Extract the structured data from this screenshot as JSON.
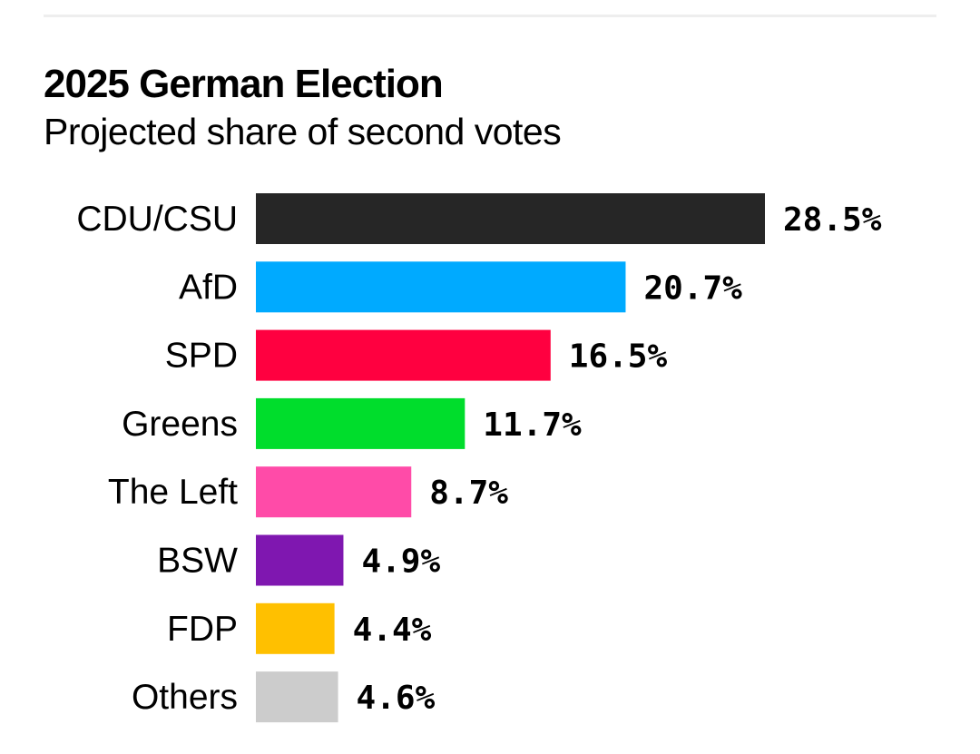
{
  "chart_data": {
    "type": "bar",
    "orientation": "horizontal",
    "title": "2025 German Election",
    "subtitle": "Projected share of second votes",
    "xlabel": "",
    "ylabel": "",
    "unit": "%",
    "xlim": [
      0,
      28.5
    ],
    "grid": false,
    "legend": "none",
    "categories": [
      "CDU/CSU",
      "AfD",
      "SPD",
      "Greens",
      "The Left",
      "BSW",
      "FDP",
      "Others"
    ],
    "values": [
      28.5,
      20.7,
      16.5,
      11.7,
      8.7,
      4.9,
      4.4,
      4.6
    ],
    "labels": [
      "28.5%",
      "20.7%",
      "16.5%",
      "11.7%",
      "8.7%",
      "4.9%",
      "4.4%",
      "4.6%"
    ],
    "colors": [
      "#262626",
      "#00aaff",
      "#ff0040",
      "#00dd2c",
      "#ff4ba8",
      "#7f17b0",
      "#ffc000",
      "#cccccc"
    ]
  }
}
